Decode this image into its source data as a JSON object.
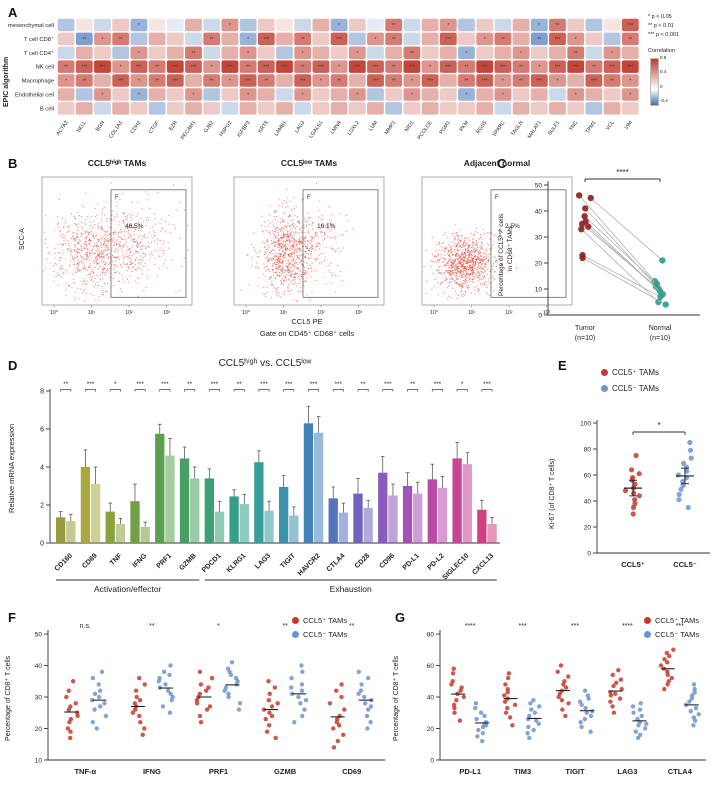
{
  "letters": {
    "A": "A",
    "B": "B",
    "C": "C",
    "D": "D",
    "E": "E",
    "F": "F",
    "G": "G"
  },
  "legend": {
    "pos": "CCL5⁺ TAMs",
    "neg": "CCL5⁻ TAMs"
  },
  "colors": {
    "red": "#c13b2d",
    "blue": "#6f93cc",
    "tumor": "#8d2323",
    "normal": "#2f9e90",
    "flow_dot": "#e8352a",
    "heat_pos": "#c0392b",
    "heat_neg": "#3f6fb5",
    "axis": "#333333"
  },
  "chart_data": [
    {
      "id": "epic-heatmap",
      "type": "heatmap",
      "ylabel": "EPIC algorithm",
      "rows": [
        "mesenchymal cell",
        "T cell CD8⁺",
        "T cell CD4⁺",
        "NK cell",
        "Macrophage",
        "Endothelial cell",
        "B cell"
      ],
      "columns": [
        "ACTA2",
        "SELL",
        "BGN",
        "COL1A1",
        "CDH2",
        "CTGF",
        "EZR",
        "PECAM1",
        "GJB2",
        "HSPG2",
        "IGFBP3",
        "KRT8",
        "LAMB1",
        "LAG3",
        "LGALS1",
        "LMNA",
        "LOXL2",
        "LUM",
        "MMP2",
        "NID1",
        "PCOLCE",
        "PGM1",
        "PKM",
        "RGS5",
        "SPARC",
        "TAGLN",
        "MALAT1",
        "SULF1",
        "TNC",
        "TPM1",
        "VCL",
        "VIM"
      ],
      "values": [
        [
          -0.3,
          0.1,
          -0.2,
          0.2,
          -0.4,
          0.1,
          -0.1,
          0.3,
          -0.2,
          0.4,
          -0.3,
          0.2,
          0.1,
          -0.2,
          0.3,
          -0.4,
          0.2,
          -0.1,
          0.5,
          -0.2,
          0.3,
          0.4,
          -0.3,
          0.2,
          -0.2,
          0.3,
          -0.4,
          0.5,
          0.2,
          -0.3,
          0.1,
          0.6
        ],
        [
          0.2,
          -0.5,
          0.4,
          0.5,
          -0.3,
          0.3,
          0.2,
          -0.2,
          0.5,
          0.3,
          -0.4,
          0.6,
          0.3,
          0.5,
          0.2,
          0.6,
          -0.3,
          0.4,
          0.5,
          -0.2,
          0.3,
          0.6,
          0.2,
          0.4,
          0.5,
          0.3,
          -0.5,
          0.6,
          0.4,
          0.2,
          -0.3,
          0.5
        ],
        [
          -0.2,
          0.3,
          0.2,
          -0.3,
          0.4,
          0.2,
          0.3,
          0.5,
          -0.2,
          0.3,
          0.4,
          0.2,
          -0.3,
          0.4,
          0.3,
          0.2,
          0.4,
          -0.2,
          0.3,
          0.5,
          0.2,
          0.3,
          -0.4,
          0.2,
          0.3,
          0.4,
          0.2,
          0.3,
          0.5,
          -0.2,
          0.4,
          0.3
        ],
        [
          0.5,
          0.6,
          0.7,
          0.4,
          0.6,
          0.5,
          0.7,
          0.6,
          0.4,
          0.7,
          0.5,
          0.6,
          0.7,
          0.5,
          0.6,
          0.4,
          0.7,
          0.6,
          0.5,
          0.7,
          0.4,
          0.6,
          0.5,
          0.7,
          0.6,
          0.5,
          0.4,
          0.6,
          0.7,
          0.5,
          0.6,
          0.7
        ],
        [
          0.4,
          0.5,
          0.3,
          0.6,
          0.4,
          0.5,
          0.6,
          0.3,
          0.5,
          0.4,
          0.6,
          0.5,
          0.3,
          0.6,
          0.4,
          0.5,
          0.3,
          0.6,
          0.5,
          0.4,
          0.6,
          0.3,
          0.5,
          0.6,
          0.4,
          0.5,
          0.6,
          0.4,
          0.3,
          0.6,
          0.5,
          0.4
        ],
        [
          0.3,
          -0.3,
          0.4,
          0.2,
          -0.4,
          0.3,
          0.2,
          0.4,
          -0.3,
          0.2,
          0.4,
          0.3,
          -0.2,
          0.4,
          0.2,
          0.3,
          0.4,
          -0.3,
          0.2,
          0.4,
          0.3,
          0.2,
          -0.4,
          0.3,
          0.4,
          0.2,
          0.3,
          -0.2,
          0.4,
          0.3,
          0.2,
          0.4
        ],
        [
          0.2,
          0.3,
          -0.2,
          0.3,
          0.2,
          -0.3,
          0.2,
          0.3,
          0.2,
          -0.2,
          0.3,
          0.2,
          0.3,
          -0.2,
          0.2,
          0.3,
          0.2,
          0.3,
          -0.3,
          0.2,
          0.3,
          0.2,
          0.2,
          0.3,
          -0.2,
          0.3,
          0.2,
          0.3,
          0.2,
          -0.3,
          0.3,
          0.2
        ]
      ],
      "sig_legend": [
        "* p < 0.05",
        "** p < 0.01",
        "*** p < 0.001"
      ],
      "colorbar_title": "Correlation",
      "colorbar_ticks": [
        "0.8",
        "0.4",
        "0",
        "-0.4"
      ]
    },
    {
      "id": "flow-cytometry",
      "type": "scatter",
      "plots": [
        {
          "title": "CCL5ʰⁱᵍʰ TAMs",
          "gate": "F",
          "percent": "46.5%"
        },
        {
          "title": "CCL5ˡᵒʷ TAMs",
          "gate": "F",
          "percent": "16.1%"
        },
        {
          "title": "Adjacent normal",
          "gate": "F",
          "percent": "2.5%"
        }
      ],
      "ylabel": "SCC-A",
      "xlabel": "CCL5 PE",
      "x_sub": "Gate on CD45⁺ CD68⁺ cells",
      "xticks": [
        "10⁰",
        "10¹",
        "10²",
        "10³"
      ]
    },
    {
      "id": "paired-tumor-normal",
      "type": "scatter",
      "ylabel_line1": "Percentage of CCL5ʰⁱᵍʰ cells",
      "ylabel_line2": "in CD68⁺ TAMs",
      "ylim": [
        0,
        50
      ],
      "yticks": [
        0,
        10,
        20,
        30,
        40,
        50
      ],
      "groups": [
        {
          "label": "Tumor",
          "n": "(n=10)"
        },
        {
          "label": "Normal",
          "n": "(n=10)"
        }
      ],
      "pairs": [
        [
          46,
          13
        ],
        [
          45,
          21
        ],
        [
          41,
          10
        ],
        [
          38,
          12
        ],
        [
          36,
          8
        ],
        [
          35,
          11
        ],
        [
          34,
          9
        ],
        [
          33,
          5
        ],
        [
          23,
          7
        ],
        [
          22,
          4
        ]
      ],
      "sig": "****"
    },
    {
      "id": "mrna-bars",
      "type": "bar",
      "title": "CCL5ʰⁱᵍʰ vs. CCL5ˡᵒʷ",
      "ylabel": "Relative mRNA expression",
      "ylim": [
        0,
        8
      ],
      "yticks": [
        0,
        2,
        4,
        6,
        8
      ],
      "categories": [
        "CD160",
        "CD69",
        "TNF",
        "IFNG",
        "PRF1",
        "GZMB",
        "PDCD1",
        "KLRG1",
        "LAG3",
        "TIGIT",
        "HAVCR2",
        "CTLA4",
        "CD28",
        "CD96",
        "PD-L1",
        "PD-L2",
        "SIGLEC10",
        "CXCL13"
      ],
      "series": [
        {
          "name": "CCL5ʰⁱᵍʰ",
          "values": [
            1.35,
            4.0,
            1.65,
            2.2,
            5.75,
            4.45,
            3.4,
            2.45,
            4.25,
            2.95,
            6.3,
            2.35,
            2.6,
            3.7,
            3.0,
            3.35,
            4.45,
            1.75
          ],
          "errors": [
            0.3,
            0.9,
            0.45,
            0.9,
            0.5,
            0.6,
            0.5,
            0.35,
            0.6,
            0.6,
            0.9,
            0.6,
            0.8,
            0.85,
            0.7,
            0.8,
            0.85,
            0.5
          ]
        },
        {
          "name": "CCL5ˡᵒʷ",
          "values": [
            1.15,
            3.1,
            1.0,
            0.85,
            4.6,
            3.4,
            1.65,
            2.05,
            1.7,
            1.45,
            5.8,
            1.6,
            1.85,
            2.5,
            2.6,
            2.9,
            4.15,
            1.0
          ],
          "errors": [
            0.35,
            0.9,
            0.3,
            0.25,
            0.9,
            0.6,
            0.55,
            0.5,
            0.5,
            0.45,
            0.85,
            0.5,
            0.4,
            0.6,
            0.6,
            0.6,
            0.6,
            0.35
          ]
        }
      ],
      "sig": [
        "**",
        "***",
        "*",
        "***",
        "***",
        "**",
        "***",
        "**",
        "***",
        "***",
        "***",
        "***",
        "**",
        "***",
        "**",
        "***",
        "*",
        "***"
      ],
      "palette": [
        "#99993d",
        "#a8a83f",
        "#8aa23e",
        "#72a045",
        "#5aa04f",
        "#47a061",
        "#39a175",
        "#35a08a",
        "#369c9c",
        "#3a92ac",
        "#4283b8",
        "#5572bd",
        "#6f64bd",
        "#8b5abb",
        "#a452b3",
        "#b94ba6",
        "#c74595",
        "#cf4083"
      ],
      "group_spans": [
        {
          "label": "Activation/effector",
          "from": 0,
          "to": 5
        },
        {
          "label": "Exhaustion",
          "from": 6,
          "to": 17
        }
      ]
    },
    {
      "id": "ki67",
      "type": "scatter",
      "ylabel": "Ki-67 (of CD8⁺ T cells)",
      "ylim": [
        0,
        100
      ],
      "yticks": [
        0,
        20,
        40,
        60,
        80,
        100
      ],
      "sig": "*",
      "categories": [
        "CCL5⁺",
        "CCL5⁻"
      ],
      "series": [
        {
          "name": "CCL5⁺ TAMs",
          "values": [
            30,
            35,
            38,
            41,
            44,
            46,
            48,
            50,
            53,
            56,
            58,
            61,
            64,
            75
          ]
        },
        {
          "name": "CCL5⁻ TAMs",
          "values": [
            35,
            41,
            45,
            49,
            52,
            55,
            58,
            60,
            63,
            66,
            69,
            73,
            79,
            85
          ]
        }
      ]
    },
    {
      "id": "effector-dotplot",
      "type": "scatter",
      "ylabel": "Percentage of CD8⁺ T cells",
      "ylim": [
        10,
        50
      ],
      "yticks": [
        10,
        20,
        30,
        40,
        50
      ],
      "categories": [
        "TNF-α",
        "IFNG",
        "PRF1",
        "GZMB",
        "CD69"
      ],
      "sig": [
        "n.s.",
        "**",
        "*",
        "**",
        "**"
      ],
      "series": [
        {
          "name": "CCL5⁺ TAMs",
          "values": [
            [
              17,
              19,
              20,
              22,
              23,
              24,
              25,
              26,
              27,
              28,
              30,
              32,
              35
            ],
            [
              18,
              20,
              22,
              24,
              25,
              26,
              27,
              28,
              29,
              30,
              32,
              34,
              36
            ],
            [
              22,
              24,
              26,
              27,
              28,
              29,
              30,
              31,
              32,
              33,
              34,
              36,
              38
            ],
            [
              17,
              19,
              21,
              23,
              24,
              25,
              26,
              27,
              28,
              29,
              31,
              33,
              35
            ],
            [
              14,
              16,
              18,
              20,
              21,
              22,
              23,
              24,
              26,
              28,
              30,
              32,
              34
            ]
          ]
        },
        {
          "name": "CCL5⁻ TAMs",
          "values": [
            [
              20,
              22,
              24,
              26,
              27,
              28,
              29,
              30,
              31,
              32,
              34,
              36,
              38
            ],
            [
              25,
              27,
              29,
              30,
              31,
              32,
              33,
              34,
              35,
              36,
              37,
              38,
              40
            ],
            [
              26,
              28,
              30,
              31,
              32,
              33,
              34,
              35,
              36,
              37,
              38,
              39,
              41
            ],
            [
              22,
              24,
              26,
              28,
              29,
              30,
              31,
              32,
              33,
              34,
              36,
              38,
              40
            ],
            [
              20,
              22,
              24,
              26,
              27,
              28,
              29,
              30,
              31,
              32,
              34,
              36,
              38
            ]
          ]
        }
      ]
    },
    {
      "id": "exhaustion-dotplot",
      "type": "scatter",
      "ylabel": "Percentage of CD8⁺ T cells",
      "ylim": [
        0,
        80
      ],
      "yticks": [
        0,
        20,
        40,
        60,
        80
      ],
      "categories": [
        "PD-L1",
        "TIM3",
        "TIGIT",
        "LAG3",
        "CTLA4"
      ],
      "sig": [
        "****",
        "***",
        "***",
        "****",
        "***"
      ],
      "series": [
        {
          "name": "CCL5⁺ TAMs",
          "values": [
            [
              25,
              30,
              33,
              35,
              38,
              40,
              42,
              44,
              46,
              48,
              50,
              55,
              58
            ],
            [
              22,
              27,
              30,
              33,
              35,
              37,
              39,
              41,
              43,
              45,
              48,
              52,
              55
            ],
            [
              28,
              32,
              36,
              38,
              40,
              42,
              44,
              46,
              48,
              50,
              53,
              56,
              60
            ],
            [
              30,
              34,
              37,
              39,
              41,
              42,
              43,
              45,
              47,
              49,
              51,
              54,
              57
            ],
            [
              45,
              48,
              50,
              52,
              54,
              56,
              58,
              60,
              62,
              64,
              66,
              68,
              70
            ]
          ]
        },
        {
          "name": "CCL5⁻ TAMs",
          "values": [
            [
              12,
              15,
              17,
              19,
              21,
              22,
              23,
              24,
              26,
              28,
              30,
              33,
              36
            ],
            [
              14,
              17,
              19,
              21,
              23,
              25,
              26,
              28,
              30,
              32,
              34,
              36,
              38
            ],
            [
              18,
              21,
              24,
              26,
              28,
              30,
              31,
              33,
              35,
              37,
              39,
              41,
              44
            ],
            [
              14,
              16,
              18,
              20,
              22,
              23,
              24,
              26,
              28,
              30,
              32,
              34,
              36
            ],
            [
              22,
              25,
              27,
              29,
              31,
              33,
              35,
              37,
              39,
              41,
              43,
              45,
              48
            ]
          ]
        }
      ]
    }
  ]
}
